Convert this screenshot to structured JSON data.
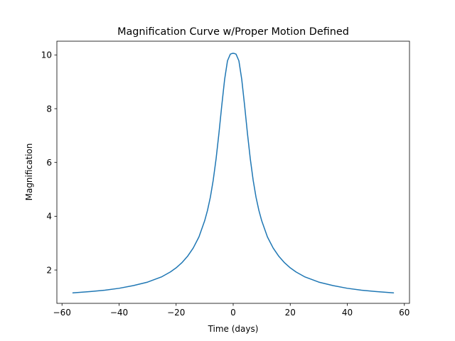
{
  "chart_data": {
    "type": "line",
    "title": "Magnification Curve w/Proper Motion Defined",
    "xlabel": "Time (days)",
    "ylabel": "Magnification",
    "xlim": [
      -61.8,
      61.8
    ],
    "ylim": [
      0.76,
      10.51
    ],
    "xticks": [
      -60,
      -40,
      -20,
      0,
      20,
      40,
      60
    ],
    "xtick_labels": [
      "−60",
      "−40",
      "−20",
      "0",
      "20",
      "40",
      "60"
    ],
    "yticks": [
      2,
      4,
      6,
      8,
      10
    ],
    "ytick_labels": [
      "2",
      "4",
      "6",
      "8",
      "10"
    ],
    "grid": false,
    "series": [
      {
        "color": "#1f77b4",
        "x": [
          -56.2,
          -50,
          -45,
          -40,
          -35,
          -30,
          -25,
          -22,
          -20,
          -18,
          -16,
          -14,
          -12,
          -10,
          -9,
          -8,
          -7,
          -6,
          -5,
          -4,
          -3,
          -2,
          -1,
          -0.5,
          0,
          0.5,
          1,
          2,
          3,
          4,
          5,
          6,
          7,
          8,
          9,
          10,
          12,
          14,
          16,
          18,
          20,
          22,
          25,
          30,
          35,
          40,
          45,
          50,
          56.2
        ],
        "y": [
          1.15,
          1.2,
          1.25,
          1.32,
          1.42,
          1.55,
          1.75,
          1.93,
          2.08,
          2.27,
          2.51,
          2.82,
          3.23,
          3.83,
          4.22,
          4.71,
          5.34,
          6.13,
          7.08,
          8.12,
          9.09,
          9.78,
          10.03,
          10.05,
          10.06,
          10.05,
          10.03,
          9.78,
          9.09,
          8.12,
          7.08,
          6.13,
          5.34,
          4.71,
          4.22,
          3.83,
          3.23,
          2.82,
          2.51,
          2.27,
          2.08,
          1.93,
          1.75,
          1.55,
          1.42,
          1.32,
          1.25,
          1.2,
          1.15
        ]
      }
    ]
  }
}
